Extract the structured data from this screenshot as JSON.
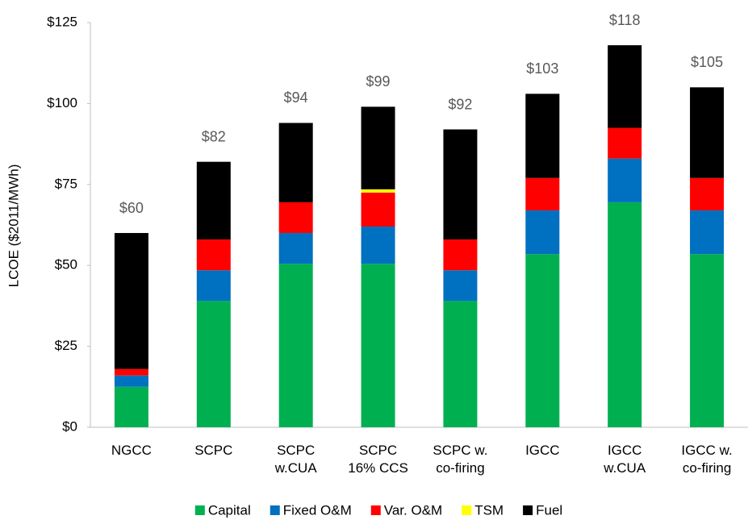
{
  "chart_data": {
    "type": "stacked_bar",
    "y_label": "LCOE ($2011/MWh)",
    "categories": [
      [
        "NGCC"
      ],
      [
        "SCPC"
      ],
      [
        "SCPC",
        "w.CUA"
      ],
      [
        "SCPC",
        "16% CCS"
      ],
      [
        "SCPC    w.",
        "co-firing"
      ],
      [
        "IGCC"
      ],
      [
        "IGCC",
        "w.CUA"
      ],
      [
        "IGCC   w.",
        "co-firing"
      ]
    ],
    "series": [
      {
        "name": "Capital",
        "color": "#00b050",
        "values": [
          12.5,
          39,
          50.5,
          50.5,
          39,
          53.5,
          69.5,
          53.5
        ]
      },
      {
        "name": "Fixed O&M",
        "color": "#0070c0",
        "values": [
          3.5,
          9.5,
          9.5,
          11.5,
          9.5,
          13.5,
          13.5,
          13.5
        ]
      },
      {
        "name": "Var. O&M",
        "color": "#ff0000",
        "values": [
          2,
          9.5,
          9.5,
          10.5,
          9.5,
          10,
          9.5,
          10
        ]
      },
      {
        "name": "TSM",
        "color": "#ffff00",
        "values": [
          0,
          0,
          0,
          1,
          0,
          0,
          0,
          0
        ]
      },
      {
        "name": "Fuel",
        "color": "#000000",
        "values": [
          42,
          24,
          24.5,
          25.5,
          34,
          26,
          25.5,
          28
        ]
      }
    ],
    "totals": [
      60,
      82,
      94,
      99,
      92,
      103,
      118,
      105
    ],
    "total_labels": [
      "$60",
      "$82",
      "$94",
      "$99",
      "$92",
      "$103",
      "$118",
      "$105"
    ],
    "ylim": [
      0,
      125
    ],
    "yticks": [
      {
        "value": 0,
        "label": "$0"
      },
      {
        "value": 25,
        "label": "$25"
      },
      {
        "value": 50,
        "label": "$50"
      },
      {
        "value": 75,
        "label": "$75"
      },
      {
        "value": 100,
        "label": "$100"
      },
      {
        "value": 125,
        "label": "$125"
      }
    ],
    "grid": false,
    "legend": "bottom"
  }
}
